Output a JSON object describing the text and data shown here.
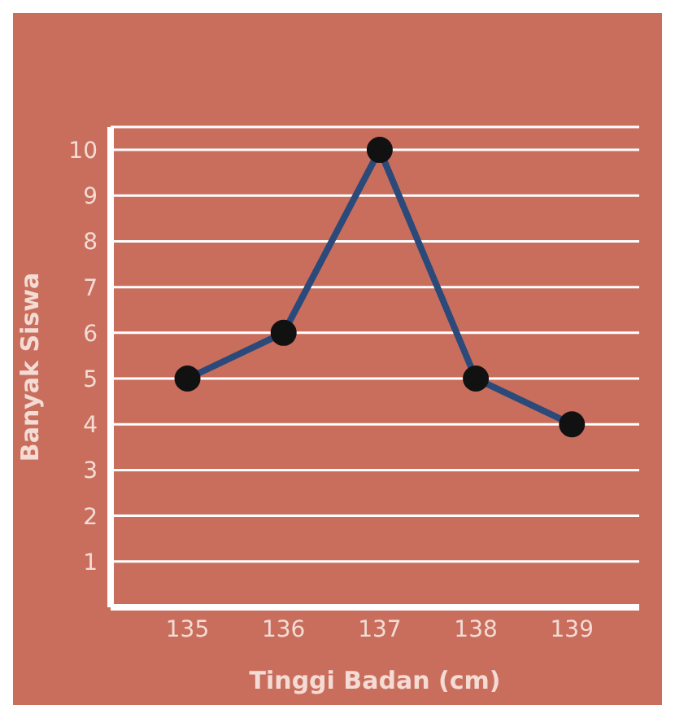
{
  "chart_data": {
    "type": "line",
    "xlabel": "Tinggi Badan (cm)",
    "ylabel": "Banyak Siswa",
    "categories": [
      "135",
      "136",
      "137",
      "138",
      "139"
    ],
    "series": [
      {
        "color": "#2b4a7a",
        "values": [
          5,
          6,
          10,
          5,
          4
        ]
      }
    ],
    "ylim": [
      0,
      10.5
    ],
    "yticks": [
      1,
      2,
      3,
      4,
      5,
      6,
      7,
      8,
      9,
      10
    ],
    "grid": "y",
    "marker": "circle",
    "line_style": "solid",
    "legend": false
  }
}
